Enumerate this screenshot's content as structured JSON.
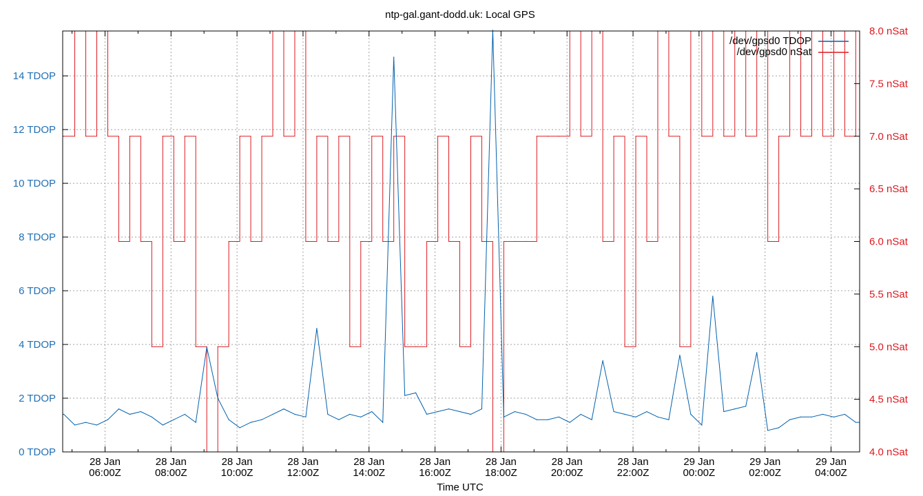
{
  "chart_data": {
    "type": "line",
    "title": "ntp-gal.gant-dodd.uk: Local GPS",
    "xlabel": "Time UTC",
    "xlim": [
      "28 Jan 04:43Z",
      "29 Jan 04:52Z"
    ],
    "x_ticks": [
      {
        "date": "28 Jan",
        "time": "06:00Z"
      },
      {
        "date": "28 Jan",
        "time": "08:00Z"
      },
      {
        "date": "28 Jan",
        "time": "10:00Z"
      },
      {
        "date": "28 Jan",
        "time": "12:00Z"
      },
      {
        "date": "28 Jan",
        "time": "14:00Z"
      },
      {
        "date": "28 Jan",
        "time": "16:00Z"
      },
      {
        "date": "28 Jan",
        "time": "18:00Z"
      },
      {
        "date": "28 Jan",
        "time": "20:00Z"
      },
      {
        "date": "28 Jan",
        "time": "22:00Z"
      },
      {
        "date": "29 Jan",
        "time": "00:00Z"
      },
      {
        "date": "29 Jan",
        "time": "02:00Z"
      },
      {
        "date": "29 Jan",
        "time": "04:00Z"
      }
    ],
    "y_left": {
      "ylim": [
        0,
        15.67
      ],
      "ticks": [
        0,
        2,
        4,
        6,
        8,
        10,
        12,
        14
      ],
      "unit": "TDOP",
      "color": "#1f6fb4"
    },
    "y_right": {
      "ylim": [
        4.0,
        8.0
      ],
      "ticks": [
        "4.0",
        "4.5",
        "5.0",
        "5.5",
        "6.0",
        "6.5",
        "7.0",
        "7.5",
        "8.0"
      ],
      "unit": "nSat",
      "color": "#dd181f"
    },
    "grid": true,
    "legend_position": "top-right",
    "series": [
      {
        "name": "/dev/gpsd0 TDOP",
        "axis": "left",
        "color": "#0060ad"
      },
      {
        "name": "/dev/gpsd0 nSat",
        "axis": "right",
        "color": "#dd181f"
      }
    ],
    "points_columns": [
      "time",
      "TDOP",
      "nSat"
    ],
    "points": [
      [
        "28 Jan 04:45Z",
        1.4,
        7
      ],
      [
        "28 Jan 05:05Z",
        1.0,
        8
      ],
      [
        "28 Jan 05:25Z",
        1.1,
        7
      ],
      [
        "28 Jan 05:45Z",
        1.0,
        8
      ],
      [
        "28 Jan 06:05Z",
        1.2,
        7
      ],
      [
        "28 Jan 06:25Z",
        1.6,
        6
      ],
      [
        "28 Jan 06:45Z",
        1.4,
        7
      ],
      [
        "28 Jan 07:05Z",
        1.5,
        6
      ],
      [
        "28 Jan 07:25Z",
        1.3,
        5
      ],
      [
        "28 Jan 07:45Z",
        1.0,
        7
      ],
      [
        "28 Jan 08:05Z",
        1.2,
        6
      ],
      [
        "28 Jan 08:25Z",
        1.4,
        7
      ],
      [
        "28 Jan 08:45Z",
        1.1,
        5
      ],
      [
        "28 Jan 09:05Z",
        3.9,
        4
      ],
      [
        "28 Jan 09:25Z",
        2.0,
        5
      ],
      [
        "28 Jan 09:45Z",
        1.2,
        6
      ],
      [
        "28 Jan 10:05Z",
        0.9,
        7
      ],
      [
        "28 Jan 10:25Z",
        1.1,
        6
      ],
      [
        "28 Jan 10:45Z",
        1.2,
        7
      ],
      [
        "28 Jan 11:05Z",
        1.4,
        8
      ],
      [
        "28 Jan 11:25Z",
        1.6,
        7
      ],
      [
        "28 Jan 11:45Z",
        1.4,
        8
      ],
      [
        "28 Jan 12:05Z",
        1.3,
        6
      ],
      [
        "28 Jan 12:25Z",
        4.6,
        7
      ],
      [
        "28 Jan 12:45Z",
        1.4,
        6
      ],
      [
        "28 Jan 13:05Z",
        1.2,
        7
      ],
      [
        "28 Jan 13:25Z",
        1.4,
        5
      ],
      [
        "28 Jan 13:45Z",
        1.3,
        6
      ],
      [
        "28 Jan 14:05Z",
        1.5,
        7
      ],
      [
        "28 Jan 14:25Z",
        1.1,
        6
      ],
      [
        "28 Jan 14:45Z",
        14.7,
        7
      ],
      [
        "28 Jan 15:05Z",
        2.1,
        5
      ],
      [
        "28 Jan 15:25Z",
        2.2,
        5
      ],
      [
        "28 Jan 15:45Z",
        1.4,
        6
      ],
      [
        "28 Jan 16:05Z",
        1.5,
        7
      ],
      [
        "28 Jan 16:25Z",
        1.6,
        6
      ],
      [
        "28 Jan 16:45Z",
        1.5,
        5
      ],
      [
        "28 Jan 17:05Z",
        1.4,
        7
      ],
      [
        "28 Jan 17:25Z",
        1.6,
        6
      ],
      [
        "28 Jan 17:45Z",
        15.7,
        4
      ],
      [
        "28 Jan 18:05Z",
        1.3,
        6
      ],
      [
        "28 Jan 18:25Z",
        1.5,
        6
      ],
      [
        "28 Jan 18:45Z",
        1.4,
        6
      ],
      [
        "28 Jan 19:05Z",
        1.2,
        7
      ],
      [
        "28 Jan 19:25Z",
        1.2,
        7
      ],
      [
        "28 Jan 19:45Z",
        1.3,
        7
      ],
      [
        "28 Jan 20:05Z",
        1.1,
        8
      ],
      [
        "28 Jan 20:25Z",
        1.4,
        7
      ],
      [
        "28 Jan 20:45Z",
        1.2,
        8
      ],
      [
        "28 Jan 21:05Z",
        3.4,
        6
      ],
      [
        "28 Jan 21:25Z",
        1.5,
        7
      ],
      [
        "28 Jan 21:45Z",
        1.4,
        5
      ],
      [
        "28 Jan 22:05Z",
        1.3,
        7
      ],
      [
        "28 Jan 22:25Z",
        1.5,
        6
      ],
      [
        "28 Jan 22:45Z",
        1.3,
        8
      ],
      [
        "28 Jan 23:05Z",
        1.2,
        7
      ],
      [
        "28 Jan 23:25Z",
        3.6,
        5
      ],
      [
        "28 Jan 23:45Z",
        1.4,
        8
      ],
      [
        "29 Jan 00:05Z",
        1.0,
        7
      ],
      [
        "29 Jan 00:25Z",
        5.8,
        8
      ],
      [
        "29 Jan 00:45Z",
        1.5,
        7
      ],
      [
        "29 Jan 01:05Z",
        1.6,
        8
      ],
      [
        "29 Jan 01:25Z",
        1.7,
        7
      ],
      [
        "29 Jan 01:45Z",
        3.7,
        8
      ],
      [
        "29 Jan 02:05Z",
        0.8,
        6
      ],
      [
        "29 Jan 02:25Z",
        0.9,
        7
      ],
      [
        "29 Jan 02:45Z",
        1.2,
        8
      ],
      [
        "29 Jan 03:05Z",
        1.3,
        7
      ],
      [
        "29 Jan 03:25Z",
        1.3,
        8
      ],
      [
        "29 Jan 03:45Z",
        1.4,
        7
      ],
      [
        "29 Jan 04:05Z",
        1.3,
        8
      ],
      [
        "29 Jan 04:25Z",
        1.4,
        7
      ],
      [
        "29 Jan 04:45Z",
        1.1,
        8
      ]
    ]
  }
}
